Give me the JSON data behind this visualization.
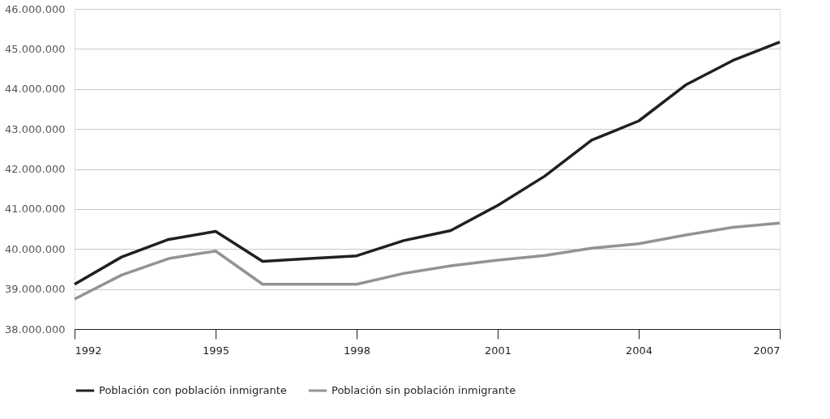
{
  "chart_data": {
    "type": "line",
    "x": [
      1992,
      1993,
      1994,
      1995,
      1996,
      1997,
      1998,
      1999,
      2000,
      2001,
      2002,
      2003,
      2004,
      2005,
      2006,
      2007
    ],
    "series": [
      {
        "name": "Población con población inmigrante",
        "color": "#231f20",
        "values": [
          39120000.0,
          39800000.0,
          40240000.0,
          40440000.0,
          39690000.0,
          39760000.0,
          39830000.0,
          40210000.0,
          40460000.0,
          41090000.0,
          41820000.0,
          42720000.0,
          43200000.0,
          44100000.0,
          44710000.0,
          45170000.0
        ]
      },
      {
        "name": "Población sin población inmigrante",
        "color": "#939393",
        "values": [
          38750000.0,
          39350000.0,
          39760000.0,
          39950000.0,
          39120000.0,
          39120000.0,
          39120000.0,
          39390000.0,
          39580000.0,
          39720000.0,
          39840000.0,
          40020000.0,
          40130000.0,
          40350000.0,
          40540000.0,
          40650000.0
        ]
      }
    ],
    "xlim": [
      1992,
      2007
    ],
    "xticks": [
      1992,
      1995,
      1998,
      2001,
      2004,
      2007
    ],
    "ylim": [
      38000000,
      46000000
    ],
    "yticks": [
      {
        "value": 38000000,
        "label": "38.000.000"
      },
      {
        "value": 39000000,
        "label": "39.000.000"
      },
      {
        "value": 40000000,
        "label": "40.000.000"
      },
      {
        "value": 41000000,
        "label": "41.000.000"
      },
      {
        "value": 42000000,
        "label": "42.000.000"
      },
      {
        "value": 43000000,
        "label": "43.000.000"
      },
      {
        "value": 44000000,
        "label": "44.000.000"
      },
      {
        "value": 45000000,
        "label": "45.000.000"
      },
      {
        "value": 46000000,
        "label": "46.000.000"
      }
    ],
    "grid": "y",
    "legend": "bottom",
    "marker": "none",
    "line_style": "solid"
  }
}
